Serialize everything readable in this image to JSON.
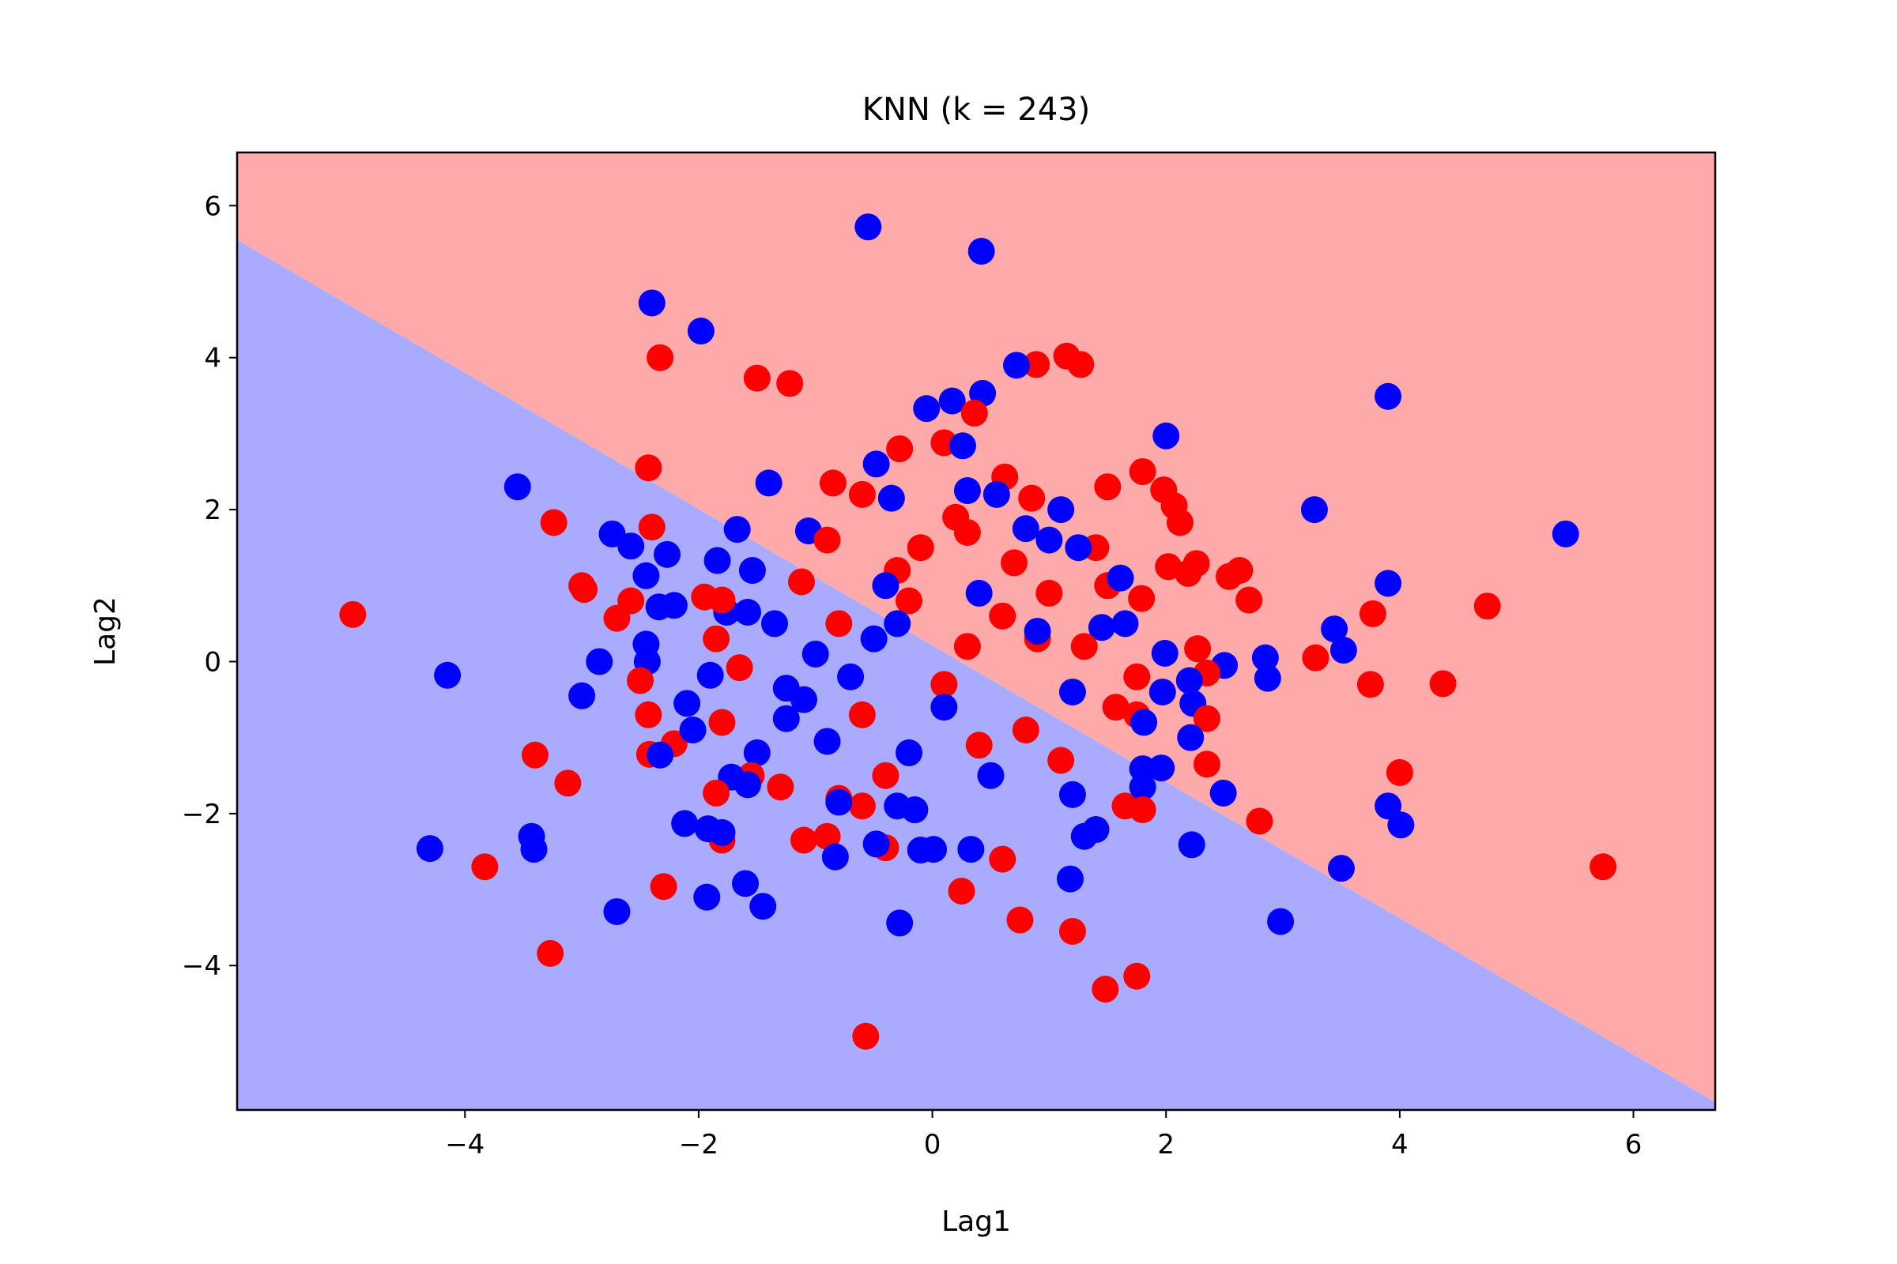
{
  "chart_data": {
    "type": "scatter",
    "title": "KNN (k = 243)",
    "xlabel": "Lag1",
    "ylabel": "Lag2",
    "xlim": [
      -5.95,
      6.7
    ],
    "ylim": [
      -5.9,
      6.7
    ],
    "xticks": [
      -4,
      -2,
      0,
      2,
      4,
      6
    ],
    "yticks": [
      -4,
      -2,
      0,
      2,
      4,
      6
    ],
    "xtick_labels": [
      "−4",
      "−2",
      "0",
      "2",
      "4",
      "6"
    ],
    "ytick_labels": [
      "−4",
      "−2",
      "0",
      "2",
      "4",
      "6"
    ],
    "grid": false,
    "legend": "none",
    "background_regions": [
      {
        "class": "red",
        "color": "#ffaaaa",
        "region": "upper-right of boundary"
      },
      {
        "class": "blue",
        "color": "#aaaaff",
        "region": "lower-left of boundary"
      }
    ],
    "decision_boundary": {
      "x": [
        -5.95,
        6.7
      ],
      "y": [
        5.55,
        -5.8
      ]
    },
    "series": [
      {
        "color": "#0000ff",
        "points": [
          [
            -0.55,
            5.72
          ],
          [
            0.42,
            5.4
          ],
          [
            -2.4,
            4.72
          ],
          [
            -1.98,
            4.35
          ],
          [
            0.72,
            3.9
          ],
          [
            0.43,
            3.53
          ],
          [
            0.17,
            3.43
          ],
          [
            -0.05,
            3.33
          ],
          [
            3.9,
            3.49
          ],
          [
            2.0,
            2.97
          ],
          [
            0.26,
            2.84
          ],
          [
            -0.48,
            2.6
          ],
          [
            -1.4,
            2.35
          ],
          [
            -3.55,
            2.3
          ],
          [
            0.55,
            2.2
          ],
          [
            0.3,
            2.25
          ],
          [
            -0.35,
            2.15
          ],
          [
            3.27,
            2.0
          ],
          [
            5.42,
            1.68
          ],
          [
            1.1,
            2.0
          ],
          [
            0.8,
            1.75
          ],
          [
            1.0,
            1.6
          ],
          [
            -1.06,
            1.72
          ],
          [
            -1.67,
            1.74
          ],
          [
            -2.74,
            1.68
          ],
          [
            -2.58,
            1.52
          ],
          [
            -2.27,
            1.41
          ],
          [
            1.25,
            1.5
          ],
          [
            -1.84,
            1.33
          ],
          [
            -1.54,
            1.2
          ],
          [
            -2.45,
            1.13
          ],
          [
            1.61,
            1.1
          ],
          [
            3.9,
            1.03
          ],
          [
            -2.21,
            0.74
          ],
          [
            -2.34,
            0.72
          ],
          [
            -1.58,
            0.65
          ],
          [
            -1.76,
            0.65
          ],
          [
            -1.35,
            0.5
          ],
          [
            1.45,
            0.45
          ],
          [
            1.65,
            0.5
          ],
          [
            3.44,
            0.43
          ],
          [
            -2.45,
            0.23
          ],
          [
            2.85,
            0.05
          ],
          [
            1.99,
            0.11
          ],
          [
            3.52,
            0.15
          ],
          [
            -2.44,
            0.0
          ],
          [
            -2.85,
            0.0
          ],
          [
            2.5,
            -0.05
          ],
          [
            2.2,
            -0.25
          ],
          [
            2.87,
            -0.22
          ],
          [
            -4.15,
            -0.18
          ],
          [
            -1.9,
            -0.18
          ],
          [
            1.97,
            -0.4
          ],
          [
            -3.0,
            -0.45
          ],
          [
            -1.25,
            -0.35
          ],
          [
            -2.1,
            -0.55
          ],
          [
            2.23,
            -0.55
          ],
          [
            -1.25,
            -0.75
          ],
          [
            1.81,
            -0.8
          ],
          [
            -2.05,
            -0.9
          ],
          [
            2.21,
            -1.0
          ],
          [
            -1.5,
            -1.2
          ],
          [
            -0.9,
            -1.05
          ],
          [
            -2.33,
            -1.23
          ],
          [
            1.8,
            -1.41
          ],
          [
            1.96,
            -1.4
          ],
          [
            -1.72,
            -1.52
          ],
          [
            -1.58,
            -1.62
          ],
          [
            2.49,
            -1.73
          ],
          [
            -0.8,
            -1.85
          ],
          [
            1.8,
            -1.65
          ],
          [
            -0.3,
            -1.9
          ],
          [
            -0.15,
            -1.95
          ],
          [
            1.2,
            -1.75
          ],
          [
            -2.12,
            -2.13
          ],
          [
            -1.92,
            -2.2
          ],
          [
            1.4,
            -2.21
          ],
          [
            1.3,
            -2.3
          ],
          [
            -1.8,
            -2.25
          ],
          [
            -3.43,
            -2.3
          ],
          [
            -4.3,
            -2.46
          ],
          [
            -3.41,
            -2.47
          ],
          [
            -0.1,
            -2.48
          ],
          [
            0.01,
            -2.47
          ],
          [
            0.33,
            -2.47
          ],
          [
            2.22,
            -2.41
          ],
          [
            -0.48,
            -2.4
          ],
          [
            -0.83,
            -2.57
          ],
          [
            -1.6,
            -2.92
          ],
          [
            1.18,
            -2.86
          ],
          [
            -1.93,
            -3.1
          ],
          [
            -1.45,
            -3.22
          ],
          [
            -2.7,
            -3.29
          ],
          [
            -0.28,
            -3.44
          ],
          [
            3.5,
            -2.72
          ],
          [
            3.9,
            -1.9
          ],
          [
            4.01,
            -2.15
          ],
          [
            2.98,
            -3.42
          ],
          [
            -0.5,
            0.3
          ],
          [
            -0.3,
            0.5
          ],
          [
            -0.7,
            -0.2
          ],
          [
            -1.0,
            0.1
          ],
          [
            0.1,
            -0.6
          ],
          [
            -0.2,
            -1.2
          ],
          [
            0.5,
            -1.5
          ],
          [
            1.2,
            -0.4
          ],
          [
            -1.1,
            -0.5
          ],
          [
            0.9,
            0.4
          ],
          [
            -0.4,
            1.0
          ],
          [
            0.4,
            0.9
          ]
        ]
      },
      {
        "color": "#ff0000",
        "points": [
          [
            -2.33,
            4.0
          ],
          [
            -1.5,
            3.73
          ],
          [
            -1.22,
            3.66
          ],
          [
            0.89,
            3.91
          ],
          [
            1.15,
            4.02
          ],
          [
            1.27,
            3.91
          ],
          [
            0.36,
            3.27
          ],
          [
            0.1,
            2.88
          ],
          [
            -0.28,
            2.8
          ],
          [
            -2.43,
            2.55
          ],
          [
            -0.85,
            2.35
          ],
          [
            0.62,
            2.43
          ],
          [
            1.8,
            2.5
          ],
          [
            1.5,
            2.3
          ],
          [
            1.98,
            2.26
          ],
          [
            2.07,
            2.05
          ],
          [
            -0.6,
            2.2
          ],
          [
            0.85,
            2.15
          ],
          [
            2.12,
            1.83
          ],
          [
            -3.24,
            1.83
          ],
          [
            -2.4,
            1.77
          ],
          [
            0.3,
            1.7
          ],
          [
            -0.9,
            1.6
          ],
          [
            1.4,
            1.5
          ],
          [
            2.02,
            1.25
          ],
          [
            2.26,
            1.29
          ],
          [
            2.19,
            1.16
          ],
          [
            2.54,
            1.12
          ],
          [
            2.63,
            1.2
          ],
          [
            1.5,
            1.0
          ],
          [
            -3.0,
            1.0
          ],
          [
            -2.98,
            0.95
          ],
          [
            -1.12,
            1.05
          ],
          [
            -0.3,
            1.2
          ],
          [
            1.79,
            0.83
          ],
          [
            -1.95,
            0.85
          ],
          [
            -1.8,
            0.81
          ],
          [
            2.71,
            0.81
          ],
          [
            4.75,
            0.73
          ],
          [
            3.77,
            0.63
          ],
          [
            -2.58,
            0.8
          ],
          [
            -2.7,
            0.57
          ],
          [
            -4.96,
            0.62
          ],
          [
            -1.85,
            0.3
          ],
          [
            0.9,
            0.3
          ],
          [
            2.27,
            0.17
          ],
          [
            3.28,
            0.05
          ],
          [
            2.35,
            -0.15
          ],
          [
            1.75,
            -0.2
          ],
          [
            -2.5,
            -0.25
          ],
          [
            -1.65,
            -0.08
          ],
          [
            3.75,
            -0.3
          ],
          [
            4.37,
            -0.29
          ],
          [
            -2.43,
            -0.7
          ],
          [
            -1.8,
            -0.8
          ],
          [
            1.57,
            -0.6
          ],
          [
            1.75,
            -0.7
          ],
          [
            2.35,
            -0.75
          ],
          [
            -2.21,
            -1.08
          ],
          [
            -2.42,
            -1.22
          ],
          [
            -3.4,
            -1.23
          ],
          [
            2.35,
            -1.35
          ],
          [
            -1.55,
            -1.5
          ],
          [
            4.0,
            -1.46
          ],
          [
            -3.12,
            -1.6
          ],
          [
            -1.3,
            -1.65
          ],
          [
            -1.85,
            -1.73
          ],
          [
            -0.8,
            -1.8
          ],
          [
            -0.6,
            -1.9
          ],
          [
            1.65,
            -1.9
          ],
          [
            1.8,
            -1.95
          ],
          [
            2.8,
            -2.1
          ],
          [
            -1.8,
            -2.35
          ],
          [
            -1.1,
            -2.35
          ],
          [
            -0.9,
            -2.3
          ],
          [
            -0.4,
            -2.45
          ],
          [
            -3.83,
            -2.7
          ],
          [
            5.74,
            -2.7
          ],
          [
            0.25,
            -3.02
          ],
          [
            -2.3,
            -2.96
          ],
          [
            0.75,
            -3.4
          ],
          [
            1.2,
            -3.55
          ],
          [
            -3.27,
            -3.84
          ],
          [
            1.75,
            -4.14
          ],
          [
            1.48,
            -4.31
          ],
          [
            -0.57,
            -4.93
          ],
          [
            0.6,
            -2.6
          ],
          [
            0.3,
            0.2
          ],
          [
            0.1,
            -0.3
          ],
          [
            0.6,
            0.6
          ],
          [
            -0.2,
            0.8
          ],
          [
            0.8,
            -0.9
          ],
          [
            1.0,
            0.9
          ],
          [
            -0.6,
            -0.7
          ],
          [
            0.4,
            -1.1
          ],
          [
            -0.1,
            1.5
          ],
          [
            0.7,
            1.3
          ],
          [
            1.3,
            0.2
          ],
          [
            -0.8,
            0.5
          ],
          [
            0.2,
            1.9
          ],
          [
            1.1,
            -1.3
          ],
          [
            -0.4,
            -1.5
          ]
        ]
      }
    ]
  }
}
